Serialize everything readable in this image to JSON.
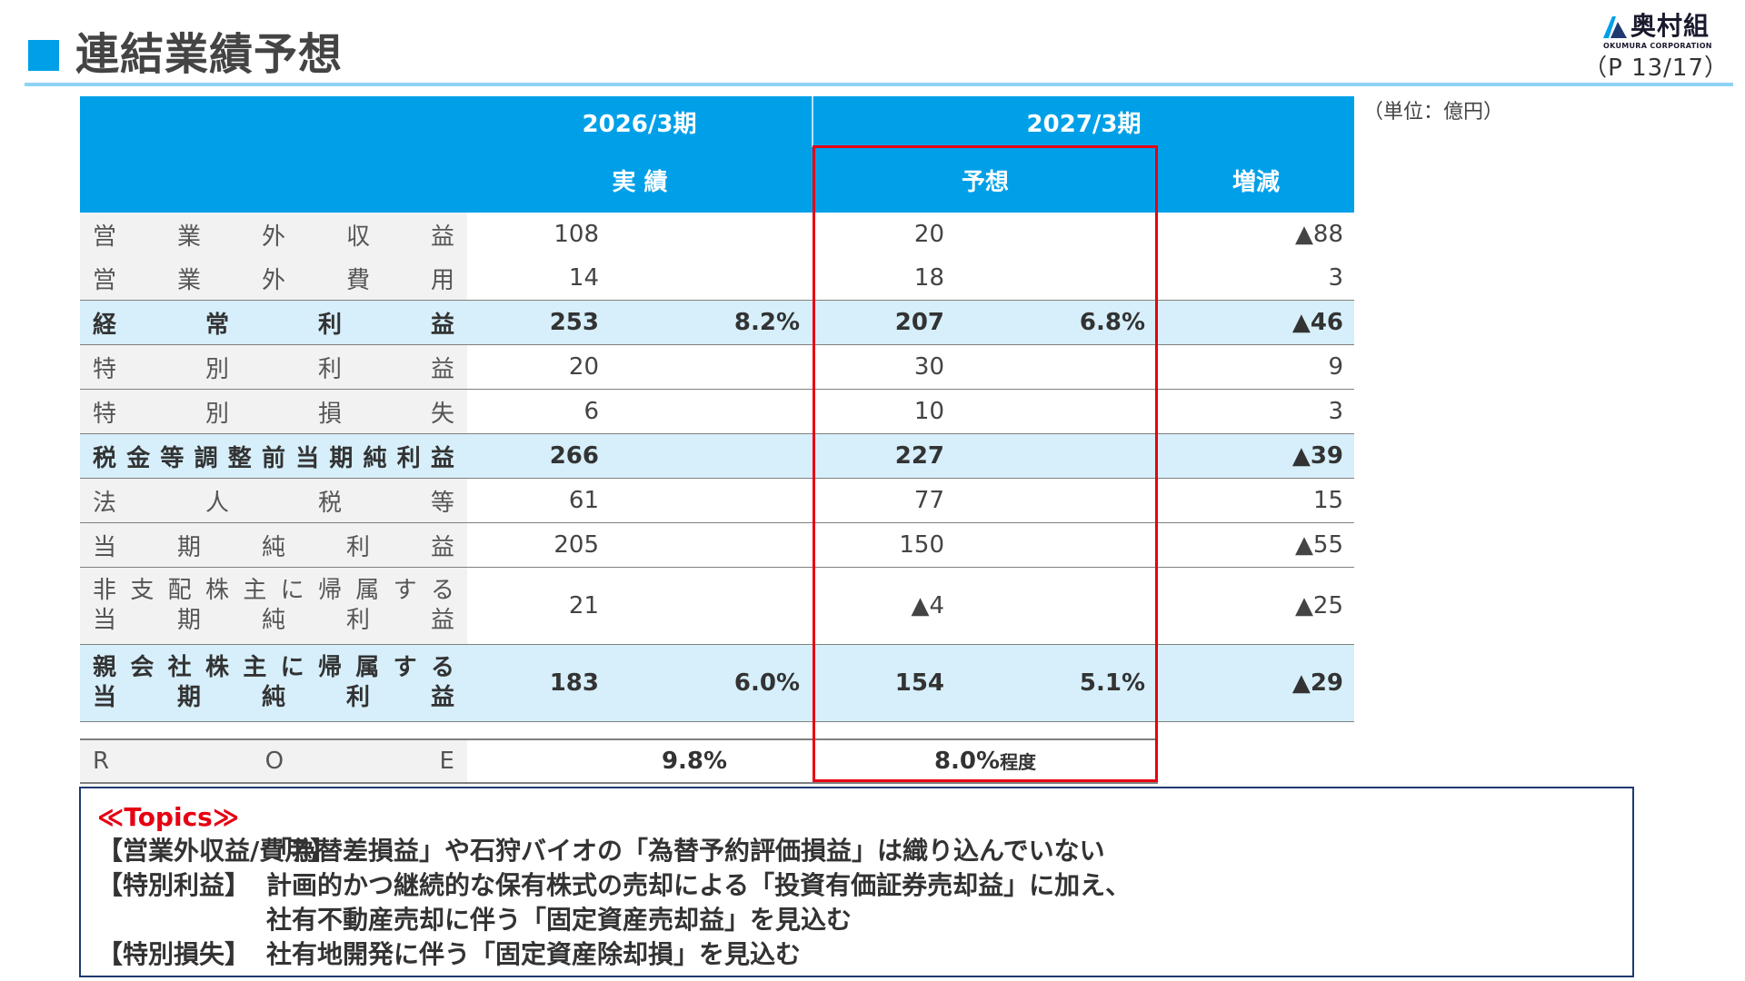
{
  "header": {
    "title": "連結業績予想",
    "logo_name": "奥村組",
    "logo_sub": "OKUMURA CORPORATION",
    "page": "（P 13/17）",
    "unit": "（単位：億円）"
  },
  "table": {
    "year1": "2026/3期",
    "year2": "2027/3期",
    "col_actual": "実 績",
    "col_forecast": "予想",
    "col_change": "増減",
    "rows": [
      {
        "label": [
          "営",
          "業",
          "外",
          "収",
          "益"
        ],
        "actual": "108",
        "actual_pct": "",
        "forecast": "20",
        "forecast_pct": "",
        "change": "▲88"
      },
      {
        "label": [
          "営",
          "業",
          "外",
          "費",
          "用"
        ],
        "actual": "14",
        "actual_pct": "",
        "forecast": "18",
        "forecast_pct": "",
        "change": "3"
      },
      {
        "label": [
          "経",
          "常",
          "利",
          "益"
        ],
        "actual": "253",
        "actual_pct": "8.2%",
        "forecast": "207",
        "forecast_pct": "6.8%",
        "change": "▲46"
      },
      {
        "label": [
          "特",
          "別",
          "利",
          "益"
        ],
        "actual": "20",
        "actual_pct": "",
        "forecast": "30",
        "forecast_pct": "",
        "change": "9"
      },
      {
        "label": [
          "特",
          "別",
          "損",
          "失"
        ],
        "actual": "6",
        "actual_pct": "",
        "forecast": "10",
        "forecast_pct": "",
        "change": "3"
      },
      {
        "label": [
          "税",
          "金",
          "等",
          "調",
          "整",
          "前",
          "当",
          "期",
          "純",
          "利",
          "益"
        ],
        "actual": "266",
        "actual_pct": "",
        "forecast": "227",
        "forecast_pct": "",
        "change": "▲39"
      },
      {
        "label": [
          "法",
          "人",
          "税",
          "等"
        ],
        "actual": "61",
        "actual_pct": "",
        "forecast": "77",
        "forecast_pct": "",
        "change": "15"
      },
      {
        "label": [
          "当",
          "期",
          "純",
          "利",
          "益"
        ],
        "actual": "205",
        "actual_pct": "",
        "forecast": "150",
        "forecast_pct": "",
        "change": "▲55"
      },
      {
        "label": [
          "非",
          "支",
          "配",
          "株",
          "主",
          "に",
          "帰",
          "属",
          "す",
          "る"
        ],
        "label2": [
          "当",
          "期",
          "純",
          "利",
          "益"
        ],
        "actual": "21",
        "actual_pct": "",
        "forecast": "▲4",
        "forecast_pct": "",
        "change": "▲25"
      },
      {
        "label": [
          "親",
          "会",
          "社",
          "株",
          "主",
          "に",
          "帰",
          "属",
          "す",
          "る"
        ],
        "label2": [
          "当",
          "期",
          "純",
          "利",
          "益"
        ],
        "actual": "183",
        "actual_pct": "6.0%",
        "forecast": "154",
        "forecast_pct": "5.1%",
        "change": "▲29"
      }
    ],
    "roe": {
      "label": [
        "R",
        "O",
        "E"
      ],
      "actual": "9.8%",
      "forecast": "8.0%",
      "forecast_suffix": "程度"
    }
  },
  "topics": {
    "heading": "≪Topics≫",
    "lines": [
      {
        "tag": "【営業外収益/費用】",
        "text": "「為替差損益」や石狩バイオの「為替予約評価損益」は織り込んでいない"
      },
      {
        "tag": "【特別利益】",
        "text": "計画的かつ継続的な保有株式の売却による「投資有価証券売却益」に加え、"
      },
      {
        "tag": "",
        "text": "社有不動産売却に伴う「固定資産売却益」を見込む"
      },
      {
        "tag": "【特別損失】",
        "text": "社有地開発に伴う「固定資産除却損」を見込む"
      }
    ]
  },
  "colors": {
    "accent": "#00a0e9",
    "highlight_row": "#d6effb",
    "forecast_frame": "#e60012",
    "topics_heading": "#e60012"
  }
}
